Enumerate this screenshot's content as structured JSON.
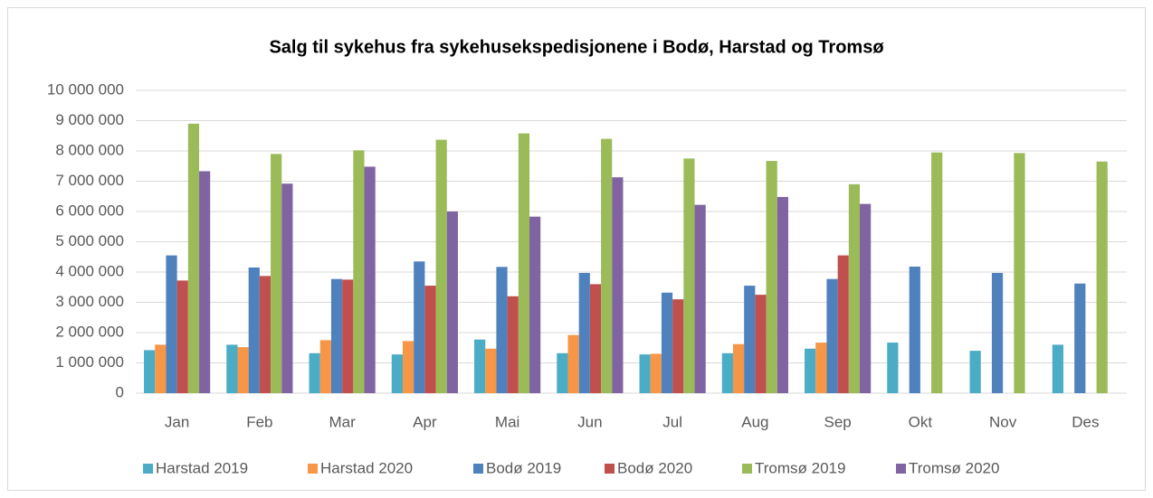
{
  "chart_data": {
    "type": "bar",
    "title": "Salg til sykehus fra sykehusekspedisjonene i Bodø, Harstad  og Tromsø",
    "categories": [
      "Jan",
      "Feb",
      "Mar",
      "Apr",
      "Mai",
      "Jun",
      "Jul",
      "Aug",
      "Sep",
      "Okt",
      "Nov",
      "Des"
    ],
    "series": [
      {
        "name": "Harstad 2019",
        "color": "#4bacc6",
        "values": [
          1420000,
          1600000,
          1320000,
          1280000,
          1770000,
          1320000,
          1280000,
          1320000,
          1470000,
          1670000,
          1400000,
          1600000
        ]
      },
      {
        "name": "Harstad 2020",
        "color": "#f79646",
        "values": [
          1600000,
          1520000,
          1750000,
          1720000,
          1470000,
          1920000,
          1300000,
          1620000,
          1670000,
          null,
          null,
          null
        ]
      },
      {
        "name": "Bodø 2019",
        "color": "#4f81bd",
        "values": [
          4550000,
          4150000,
          3770000,
          4350000,
          4170000,
          3970000,
          3320000,
          3550000,
          3770000,
          4180000,
          3970000,
          3620000
        ]
      },
      {
        "name": "Bodø 2020",
        "color": "#c0504d",
        "values": [
          3720000,
          3870000,
          3750000,
          3550000,
          3200000,
          3600000,
          3100000,
          3250000,
          4550000,
          null,
          null,
          null
        ]
      },
      {
        "name": "Tromsø 2019",
        "color": "#9bbb59",
        "values": [
          8900000,
          7900000,
          8020000,
          8370000,
          8580000,
          8400000,
          7750000,
          7670000,
          6900000,
          7950000,
          7930000,
          7650000
        ]
      },
      {
        "name": "Tromsø 2020",
        "color": "#8064a2",
        "values": [
          7330000,
          6920000,
          7480000,
          6000000,
          5830000,
          7130000,
          6220000,
          6480000,
          6250000,
          null,
          null,
          null
        ]
      }
    ],
    "ylim": [
      0,
      10000000
    ],
    "yticks": [
      0,
      {
        "value": 1000000,
        "label": "1 000 000"
      },
      {
        "value": 2000000,
        "label": "2 000 000"
      },
      {
        "value": 3000000,
        "label": "3 000 000"
      },
      {
        "value": 4000000,
        "label": "4 000 000"
      },
      {
        "value": 5000000,
        "label": "5 000 000"
      },
      {
        "value": 6000000,
        "label": "6 000 000"
      },
      {
        "value": 7000000,
        "label": "7 000 000"
      },
      {
        "value": 8000000,
        "label": "8 000 000"
      },
      {
        "value": 9000000,
        "label": "9 000 000"
      },
      {
        "value": 10000000,
        "label": "10 000 000"
      }
    ],
    "grid": true,
    "legend": "bottom"
  }
}
